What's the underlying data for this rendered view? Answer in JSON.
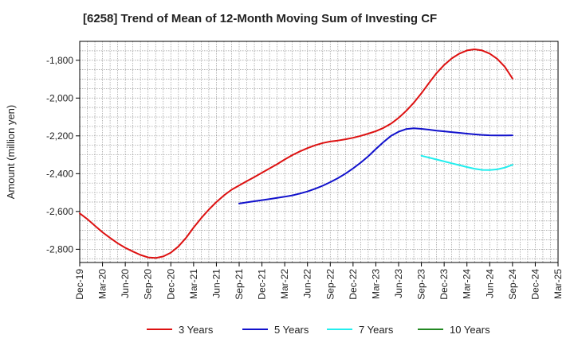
{
  "chart_data": {
    "type": "line",
    "title": "[6258]  Trend of Mean of 12-Month Moving Sum of Investing CF",
    "xlabel": "",
    "ylabel": "Amount (million yen)",
    "ylim": [
      -2870,
      -1700
    ],
    "yticks": [
      -1800,
      -2000,
      -2200,
      -2400,
      -2600,
      -2800
    ],
    "ytick_labels": [
      "-1,800",
      "-2,000",
      "-2,200",
      "-2,400",
      "-2,600",
      "-2,800"
    ],
    "xrange": [
      "2019-12",
      "2025-03"
    ],
    "xtick_labels": [
      "Dec-19",
      "Mar-20",
      "Jun-20",
      "Sep-20",
      "Dec-20",
      "Mar-21",
      "Jun-21",
      "Sep-21",
      "Dec-21",
      "Mar-22",
      "Jun-22",
      "Sep-22",
      "Dec-22",
      "Mar-23",
      "Jun-23",
      "Sep-23",
      "Dec-23",
      "Mar-24",
      "Jun-24",
      "Sep-24",
      "Dec-24",
      "Mar-25"
    ],
    "grid": true,
    "legend_position": "bottom",
    "series": [
      {
        "name": "3 Years",
        "color": "#dd1111",
        "x": [
          "2019-12",
          "2020-01",
          "2020-02",
          "2020-03",
          "2020-04",
          "2020-05",
          "2020-06",
          "2020-07",
          "2020-08",
          "2020-09",
          "2020-10",
          "2020-11",
          "2020-12",
          "2021-01",
          "2021-02",
          "2021-03",
          "2021-04",
          "2021-05",
          "2021-06",
          "2021-07",
          "2021-08",
          "2021-09",
          "2021-10",
          "2021-11",
          "2021-12",
          "2022-01",
          "2022-02",
          "2022-03",
          "2022-04",
          "2022-05",
          "2022-06",
          "2022-07",
          "2022-08",
          "2022-09",
          "2022-10",
          "2022-11",
          "2022-12",
          "2023-01",
          "2023-02",
          "2023-03",
          "2023-04",
          "2023-05",
          "2023-06",
          "2023-07",
          "2023-08",
          "2023-09",
          "2023-10",
          "2023-11",
          "2023-12",
          "2024-01",
          "2024-02",
          "2024-03",
          "2024-04",
          "2024-05",
          "2024-06",
          "2024-07",
          "2024-08",
          "2024-09"
        ],
        "values": [
          -2610,
          -2640,
          -2675,
          -2710,
          -2740,
          -2768,
          -2792,
          -2812,
          -2830,
          -2843,
          -2846,
          -2838,
          -2818,
          -2785,
          -2740,
          -2685,
          -2635,
          -2590,
          -2550,
          -2515,
          -2485,
          -2462,
          -2440,
          -2418,
          -2395,
          -2372,
          -2350,
          -2325,
          -2302,
          -2282,
          -2265,
          -2250,
          -2238,
          -2230,
          -2225,
          -2218,
          -2210,
          -2200,
          -2188,
          -2175,
          -2158,
          -2135,
          -2105,
          -2068,
          -2025,
          -1975,
          -1920,
          -1868,
          -1825,
          -1790,
          -1765,
          -1748,
          -1742,
          -1748,
          -1765,
          -1793,
          -1835,
          -1897
        ]
      },
      {
        "name": "5 Years",
        "color": "#1111cc",
        "x": [
          "2021-09",
          "2021-10",
          "2021-11",
          "2021-12",
          "2022-01",
          "2022-02",
          "2022-03",
          "2022-04",
          "2022-05",
          "2022-06",
          "2022-07",
          "2022-08",
          "2022-09",
          "2022-10",
          "2022-11",
          "2022-12",
          "2023-01",
          "2023-02",
          "2023-03",
          "2023-04",
          "2023-05",
          "2023-06",
          "2023-07",
          "2023-08",
          "2023-09",
          "2023-10",
          "2023-11",
          "2023-12",
          "2024-01",
          "2024-02",
          "2024-03",
          "2024-04",
          "2024-05",
          "2024-06",
          "2024-07",
          "2024-08",
          "2024-09"
        ],
        "values": [
          -2558,
          -2552,
          -2546,
          -2540,
          -2534,
          -2528,
          -2522,
          -2515,
          -2505,
          -2494,
          -2480,
          -2464,
          -2445,
          -2424,
          -2400,
          -2372,
          -2342,
          -2308,
          -2270,
          -2233,
          -2200,
          -2178,
          -2164,
          -2160,
          -2163,
          -2167,
          -2172,
          -2176,
          -2180,
          -2184,
          -2188,
          -2192,
          -2195,
          -2197,
          -2198,
          -2198,
          -2197
        ]
      },
      {
        "name": "7 Years",
        "color": "#22eeee",
        "x": [
          "2023-09",
          "2023-10",
          "2023-11",
          "2023-12",
          "2024-01",
          "2024-02",
          "2024-03",
          "2024-04",
          "2024-05",
          "2024-06",
          "2024-07",
          "2024-08",
          "2024-09"
        ],
        "values": [
          -2305,
          -2315,
          -2325,
          -2335,
          -2345,
          -2355,
          -2365,
          -2374,
          -2380,
          -2381,
          -2377,
          -2368,
          -2353
        ]
      },
      {
        "name": "10 Years",
        "color": "#228822",
        "x": [],
        "values": []
      }
    ]
  }
}
